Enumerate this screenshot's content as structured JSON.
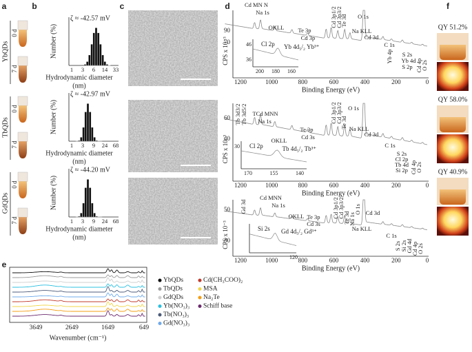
{
  "panels": {
    "a": {
      "label": "a",
      "groups": [
        {
          "name": "YbQDs",
          "days": [
            "0 d",
            "7 d"
          ]
        },
        {
          "name": "TbQDs",
          "days": [
            "0 d",
            "7 d"
          ]
        },
        {
          "name": "GdQDs",
          "days": [
            "0 d",
            "7 d"
          ]
        }
      ]
    },
    "b": {
      "label": "b",
      "plots": [
        {
          "zeta": "ζ ≈ -42.57 mV",
          "y_label": "Number (%)",
          "x_ticks": [
            "1",
            "3",
            "6",
            "14",
            "33"
          ],
          "x_label": [
            "Hydrodynamic diameter",
            "(nm)"
          ]
        },
        {
          "zeta": "ζ ≈ -42.97 mV",
          "y_label": "Number (%)",
          "x_ticks": [
            "1",
            "3",
            "9",
            "24",
            "68"
          ],
          "x_label": [
            "Hydrodynamic diameter",
            "(nm)"
          ]
        },
        {
          "zeta": "ζ ≈ -44.20 mV",
          "y_label": "Number (%)",
          "x_ticks": [
            "1",
            "3",
            "9",
            "24",
            "68"
          ],
          "x_label": [
            "Hydrodynamic diameter",
            "(nm)"
          ]
        }
      ]
    },
    "c": {
      "label": "c"
    },
    "d": {
      "label": "d",
      "plots": [
        {
          "y_label": "CPS x 10⁻³",
          "y_ticks": [
            "90",
            "70"
          ],
          "x_ticks": [
            "1200",
            "1000",
            "800",
            "600",
            "400",
            "200",
            "0"
          ],
          "x_label": "Binding Energy (eV)",
          "peaks": [
            "Cd MN N",
            "Na 1s",
            "OKLL",
            "Te 3p",
            "Cd 3p",
            "Cd 3p1/2",
            "Cd 3p3/2",
            "Te 3d",
            "O 1s",
            "Na KLL",
            "Cd 3d",
            "Yb 4p",
            "C 1s",
            "S 2s",
            "Yb 4d",
            "S 2p",
            "Cd 4p",
            "O 2s"
          ],
          "inset": {
            "labels": [
              "Cl 2p",
              "Yb 4d₅/₂ Yb³⁺"
            ],
            "y_ticks": [
              "46",
              "36"
            ],
            "x_ticks": [
              "200",
              "180",
              "160"
            ]
          }
        },
        {
          "y_label": "CPS x 10⁻³",
          "y_ticks": [
            "60",
            "40"
          ],
          "x_ticks": [
            "1200",
            "1000",
            "800",
            "600",
            "400",
            "200",
            "0"
          ],
          "x_label": "Binding Energy (eV)",
          "peaks": [
            "Tb 3d3/2",
            "Tb 3d5/2",
            "TCd MNN",
            "Na 1s",
            "OKLL",
            "Te 3p",
            "Cd 3s",
            "Cd 3p1/2",
            "Cd 3p3/2",
            "Te 3d",
            "O 1s",
            "Na KLL",
            "Cd 3d",
            "C 1s",
            "S 2s",
            "Cl 2p",
            "Tb 4d",
            "Si 2p",
            "Cd 4p",
            "O 2s"
          ],
          "inset": {
            "labels": [
              "Cl 2p",
              "Tb 4d₅/₂ Tb³⁺"
            ],
            "y_ticks": [
              "30"
            ],
            "x_ticks": [
              "170",
              "155",
              "140"
            ]
          }
        },
        {
          "y_label": "CPS x 10⁻³",
          "y_ticks": [
            "50",
            "30"
          ],
          "x_ticks": [
            "1200",
            "1000",
            "800",
            "600",
            "400",
            "200",
            "0"
          ],
          "x_label": "Binding Energy (eV)",
          "peaks": [
            "Gd 3d",
            "Cd MNN",
            "Na 1s",
            "OKLL",
            "Te 3p",
            "Cd 3s",
            "Cd 3p1/2",
            "Cd 3p3/2",
            "Te 3d",
            "Na 1s",
            "O 1s",
            "Na KLL",
            "Cd 3d",
            "C 1s",
            "S 2s",
            "Si 2s",
            "Gd 4d",
            "Cd 4p",
            "O 2s"
          ],
          "inset": {
            "labels": [
              "Si 2s",
              "Gd 4d₅/₂ Gd³⁺"
            ],
            "y_ticks": [],
            "x_ticks": [
              "120"
            ]
          }
        }
      ]
    },
    "e": {
      "label": "e",
      "x_ticks": [
        "3649",
        "2649",
        "1649",
        "649"
      ],
      "x_label": "Wavenumber (cm⁻¹)",
      "legend": [
        {
          "name": "YbQDs",
          "color": "#111111"
        },
        {
          "name": "TbQDs",
          "color": "#9a9a9a"
        },
        {
          "name": "GdQDs",
          "color": "#cfcfcf"
        },
        {
          "name": "Yb(NO₃)₃",
          "color": "#2bbfe0"
        },
        {
          "name": "Tb(NO₃)₃",
          "color": "#4b5a78"
        },
        {
          "name": "Gd(NO₃)₃",
          "color": "#6fa9ea"
        },
        {
          "name": "Cd(CH₃COO)₂",
          "color": "#c0392b"
        },
        {
          "name": "MSA",
          "color": "#f0d64a"
        },
        {
          "name": "Na₂Te",
          "color": "#f39c12"
        },
        {
          "name": "Schiff base",
          "color": "#6c2a6e"
        }
      ]
    },
    "f": {
      "label": "f",
      "qy": [
        "QY 51.2%",
        "QY 58.0%",
        "QY 40.9%"
      ]
    }
  }
}
